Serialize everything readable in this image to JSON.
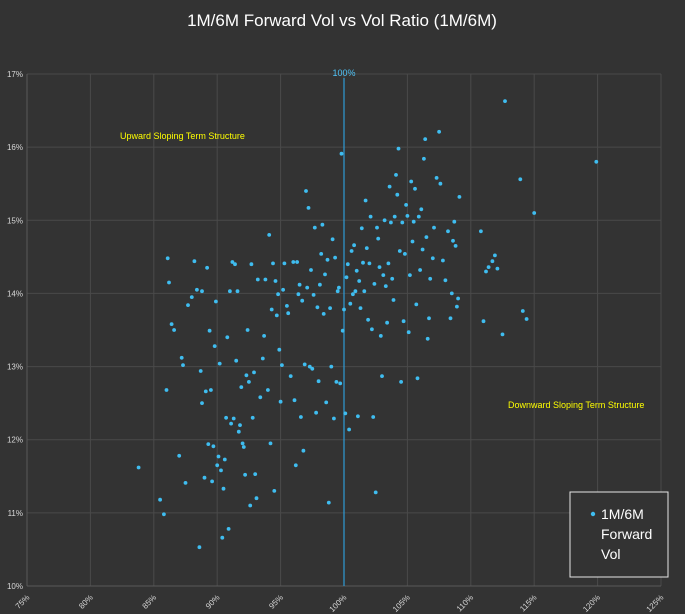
{
  "chart_data": {
    "type": "scatter",
    "title": "1M/6M Forward Vol vs Vol Ratio (1M/6M)",
    "xlim": [
      0.75,
      1.25
    ],
    "ylim": [
      0.1,
      0.17
    ],
    "x_ticks": [
      "75%",
      "80%",
      "85%",
      "90%",
      "95%",
      "100%",
      "105%",
      "110%",
      "115%",
      "120%",
      "125%"
    ],
    "y_ticks": [
      "10%",
      "11%",
      "12%",
      "13%",
      "14%",
      "15%",
      "16%",
      "17%"
    ],
    "grid": true,
    "reference_line": {
      "x": 1.0,
      "label": "100%"
    },
    "annotations": [
      {
        "text": "Upward Sloping Term Structure"
      },
      {
        "text": "Downward Sloping Term Structure"
      }
    ],
    "legend": {
      "position": "bottom-right",
      "label_lines": [
        "1M/6M",
        "Forward",
        "Vol"
      ]
    },
    "series": [
      {
        "name": "1M/6M Forward Vol",
        "color": "#3fbdf0",
        "points": [
          [
            0.838,
            0.1162
          ],
          [
            0.855,
            0.1118
          ],
          [
            0.858,
            0.1098
          ],
          [
            0.86,
            0.1268
          ],
          [
            0.861,
            0.1448
          ],
          [
            0.862,
            0.1415
          ],
          [
            0.864,
            0.1358
          ],
          [
            0.866,
            0.135
          ],
          [
            0.87,
            0.1178
          ],
          [
            0.872,
            0.1312
          ],
          [
            0.873,
            0.1302
          ],
          [
            0.875,
            0.1141
          ],
          [
            0.877,
            0.1384
          ],
          [
            0.88,
            0.1395
          ],
          [
            0.882,
            0.1444
          ],
          [
            0.884,
            0.1405
          ],
          [
            0.886,
            0.1053
          ],
          [
            0.887,
            0.1294
          ],
          [
            0.888,
            0.125
          ],
          [
            0.888,
            0.1403
          ],
          [
            0.89,
            0.1148
          ],
          [
            0.891,
            0.1266
          ],
          [
            0.892,
            0.1435
          ],
          [
            0.893,
            0.1194
          ],
          [
            0.894,
            0.1349
          ],
          [
            0.895,
            0.1268
          ],
          [
            0.896,
            0.1143
          ],
          [
            0.897,
            0.1191
          ],
          [
            0.898,
            0.1328
          ],
          [
            0.899,
            0.1389
          ],
          [
            0.9,
            0.1165
          ],
          [
            0.901,
            0.1177
          ],
          [
            0.902,
            0.1304
          ],
          [
            0.903,
            0.1158
          ],
          [
            0.904,
            0.1066
          ],
          [
            0.905,
            0.1133
          ],
          [
            0.906,
            0.1173
          ],
          [
            0.907,
            0.123
          ],
          [
            0.908,
            0.134
          ],
          [
            0.909,
            0.1078
          ],
          [
            0.91,
            0.1403
          ],
          [
            0.911,
            0.1222
          ],
          [
            0.912,
            0.1443
          ],
          [
            0.913,
            0.1229
          ],
          [
            0.914,
            0.144
          ],
          [
            0.915,
            0.1308
          ],
          [
            0.916,
            0.1403
          ],
          [
            0.917,
            0.1211
          ],
          [
            0.918,
            0.122
          ],
          [
            0.919,
            0.1272
          ],
          [
            0.92,
            0.1195
          ],
          [
            0.921,
            0.119
          ],
          [
            0.922,
            0.1152
          ],
          [
            0.923,
            0.1288
          ],
          [
            0.924,
            0.135
          ],
          [
            0.925,
            0.1279
          ],
          [
            0.926,
            0.111
          ],
          [
            0.927,
            0.144
          ],
          [
            0.928,
            0.123
          ],
          [
            0.929,
            0.1292
          ],
          [
            0.93,
            0.1153
          ],
          [
            0.931,
            0.112
          ],
          [
            0.932,
            0.1419
          ],
          [
            0.934,
            0.1258
          ],
          [
            0.936,
            0.1311
          ],
          [
            0.937,
            0.1342
          ],
          [
            0.938,
            0.1419
          ],
          [
            0.94,
            0.1268
          ],
          [
            0.941,
            0.148
          ],
          [
            0.942,
            0.1195
          ],
          [
            0.943,
            0.1378
          ],
          [
            0.944,
            0.1441
          ],
          [
            0.945,
            0.113
          ],
          [
            0.946,
            0.1417
          ],
          [
            0.947,
            0.137
          ],
          [
            0.948,
            0.1399
          ],
          [
            0.949,
            0.1323
          ],
          [
            0.95,
            0.1252
          ],
          [
            0.951,
            0.1302
          ],
          [
            0.952,
            0.1405
          ],
          [
            0.953,
            0.1441
          ],
          [
            0.955,
            0.1383
          ],
          [
            0.956,
            0.1373
          ],
          [
            0.958,
            0.1287
          ],
          [
            0.96,
            0.1443
          ],
          [
            0.961,
            0.1254
          ],
          [
            0.962,
            0.1165
          ],
          [
            0.963,
            0.1443
          ],
          [
            0.964,
            0.1399
          ],
          [
            0.965,
            0.1412
          ],
          [
            0.966,
            0.1231
          ],
          [
            0.967,
            0.139
          ],
          [
            0.968,
            0.1185
          ],
          [
            0.969,
            0.1303
          ],
          [
            0.97,
            0.154
          ],
          [
            0.971,
            0.1408
          ],
          [
            0.972,
            0.1517
          ],
          [
            0.973,
            0.13
          ],
          [
            0.974,
            0.1432
          ],
          [
            0.975,
            0.1297
          ],
          [
            0.976,
            0.1398
          ],
          [
            0.977,
            0.149
          ],
          [
            0.978,
            0.1237
          ],
          [
            0.979,
            0.1381
          ],
          [
            0.98,
            0.128
          ],
          [
            0.981,
            0.1412
          ],
          [
            0.982,
            0.1454
          ],
          [
            0.983,
            0.1494
          ],
          [
            0.984,
            0.1372
          ],
          [
            0.985,
            0.1426
          ],
          [
            0.986,
            0.1251
          ],
          [
            0.987,
            0.1446
          ],
          [
            0.988,
            0.1114
          ],
          [
            0.989,
            0.138
          ],
          [
            0.99,
            0.13
          ],
          [
            0.991,
            0.1474
          ],
          [
            0.992,
            0.1229
          ],
          [
            0.993,
            0.1449
          ],
          [
            0.994,
            0.1279
          ],
          [
            0.995,
            0.1403
          ],
          [
            0.996,
            0.1408
          ],
          [
            0.997,
            0.1277
          ],
          [
            0.998,
            0.1591
          ],
          [
            0.999,
            0.1349
          ],
          [
            1.0,
            0.1378
          ],
          [
            1.001,
            0.1236
          ],
          [
            1.002,
            0.1422
          ],
          [
            1.003,
            0.144
          ],
          [
            1.004,
            0.1214
          ],
          [
            1.005,
            0.1386
          ],
          [
            1.006,
            0.1458
          ],
          [
            1.007,
            0.1399
          ],
          [
            1.008,
            0.1466
          ],
          [
            1.009,
            0.1403
          ],
          [
            1.01,
            0.1431
          ],
          [
            1.011,
            0.1232
          ],
          [
            1.012,
            0.1417
          ],
          [
            1.013,
            0.138
          ],
          [
            1.014,
            0.1489
          ],
          [
            1.015,
            0.1442
          ],
          [
            1.016,
            0.1403
          ],
          [
            1.017,
            0.1527
          ],
          [
            1.018,
            0.1462
          ],
          [
            1.019,
            0.1364
          ],
          [
            1.02,
            0.1441
          ],
          [
            1.021,
            0.1505
          ],
          [
            1.022,
            0.1351
          ],
          [
            1.023,
            0.1231
          ],
          [
            1.024,
            0.1413
          ],
          [
            1.025,
            0.1128
          ],
          [
            1.026,
            0.149
          ],
          [
            1.027,
            0.1475
          ],
          [
            1.028,
            0.1436
          ],
          [
            1.029,
            0.1342
          ],
          [
            1.03,
            0.1287
          ],
          [
            1.031,
            0.1425
          ],
          [
            1.032,
            0.15
          ],
          [
            1.033,
            0.141
          ],
          [
            1.034,
            0.136
          ],
          [
            1.035,
            0.1441
          ],
          [
            1.036,
            0.1546
          ],
          [
            1.037,
            0.1497
          ],
          [
            1.038,
            0.142
          ],
          [
            1.039,
            0.1391
          ],
          [
            1.04,
            0.1505
          ],
          [
            1.041,
            0.1562
          ],
          [
            1.042,
            0.1535
          ],
          [
            1.043,
            0.1598
          ],
          [
            1.044,
            0.1458
          ],
          [
            1.045,
            0.1279
          ],
          [
            1.046,
            0.1497
          ],
          [
            1.047,
            0.1362
          ],
          [
            1.048,
            0.1454
          ],
          [
            1.049,
            0.1521
          ],
          [
            1.05,
            0.1506
          ],
          [
            1.051,
            0.1347
          ],
          [
            1.052,
            0.1425
          ],
          [
            1.053,
            0.1553
          ],
          [
            1.054,
            0.1471
          ],
          [
            1.055,
            0.1498
          ],
          [
            1.056,
            0.1543
          ],
          [
            1.057,
            0.1385
          ],
          [
            1.058,
            0.1284
          ],
          [
            1.059,
            0.1505
          ],
          [
            1.06,
            0.1432
          ],
          [
            1.061,
            0.1515
          ],
          [
            1.062,
            0.146
          ],
          [
            1.063,
            0.1584
          ],
          [
            1.064,
            0.1611
          ],
          [
            1.065,
            0.1477
          ],
          [
            1.066,
            0.1338
          ],
          [
            1.067,
            0.1366
          ],
          [
            1.068,
            0.142
          ],
          [
            1.07,
            0.1448
          ],
          [
            1.071,
            0.149
          ],
          [
            1.073,
            0.1558
          ],
          [
            1.075,
            0.1621
          ],
          [
            1.076,
            0.155
          ],
          [
            1.078,
            0.1445
          ],
          [
            1.08,
            0.1418
          ],
          [
            1.082,
            0.1485
          ],
          [
            1.084,
            0.1366
          ],
          [
            1.085,
            0.14
          ],
          [
            1.086,
            0.1472
          ],
          [
            1.087,
            0.1498
          ],
          [
            1.088,
            0.1465
          ],
          [
            1.089,
            0.1382
          ],
          [
            1.09,
            0.1393
          ],
          [
            1.091,
            0.1532
          ],
          [
            1.108,
            0.1485
          ],
          [
            1.11,
            0.1362
          ],
          [
            1.112,
            0.143
          ],
          [
            1.114,
            0.1436
          ],
          [
            1.117,
            0.1444
          ],
          [
            1.119,
            0.1452
          ],
          [
            1.121,
            0.1434
          ],
          [
            1.125,
            0.1344
          ],
          [
            1.127,
            0.1663
          ],
          [
            1.139,
            0.1556
          ],
          [
            1.141,
            0.1376
          ],
          [
            1.144,
            0.1365
          ],
          [
            1.15,
            0.151
          ],
          [
            1.199,
            0.158
          ]
        ]
      }
    ]
  }
}
